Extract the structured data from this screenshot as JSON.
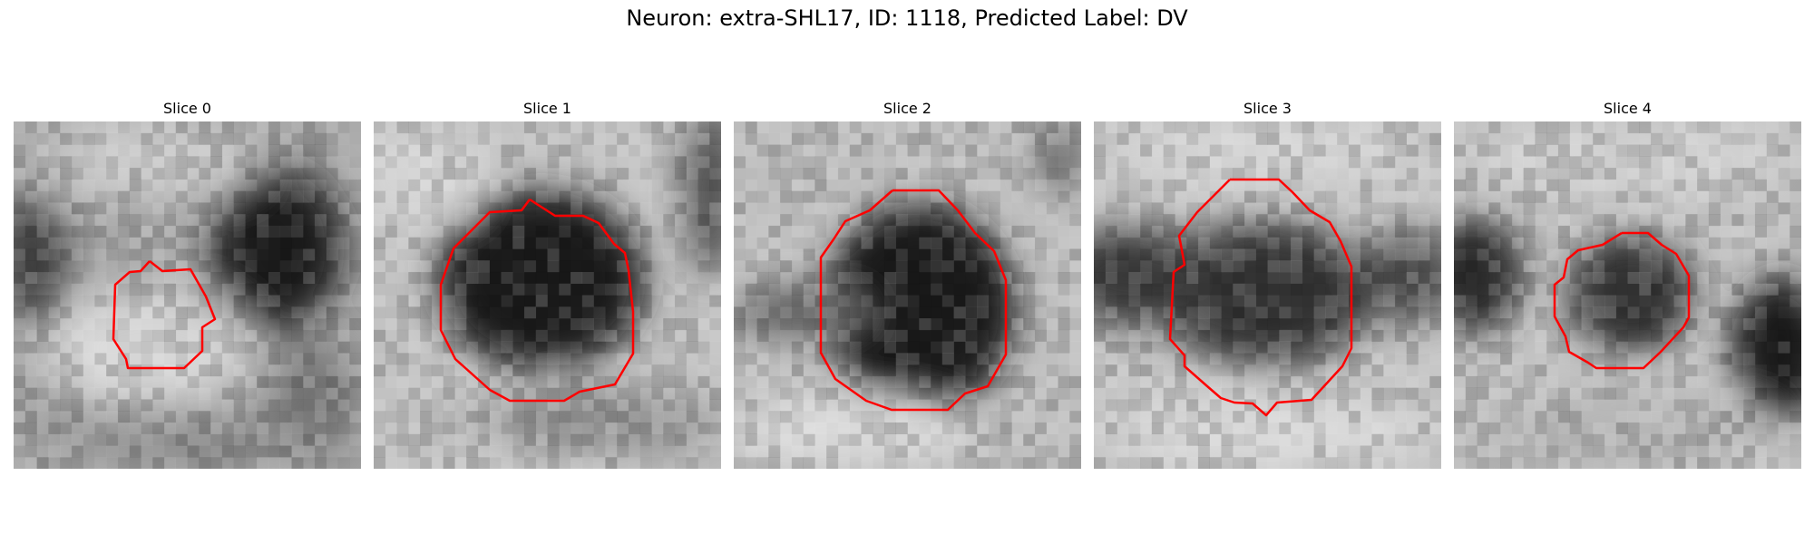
{
  "figure": {
    "title": "Neuron: extra-SHL17, ID: 1118, Predicted Label: DV"
  },
  "slices": [
    {
      "title": "Slice 0"
    },
    {
      "title": "Slice 1"
    },
    {
      "title": "Slice 2"
    },
    {
      "title": "Slice 3"
    },
    {
      "title": "Slice 4"
    }
  ],
  "colors": {
    "contour": "#ff0000"
  }
}
